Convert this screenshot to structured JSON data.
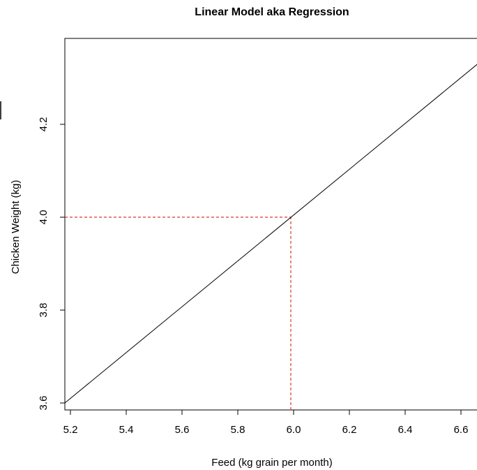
{
  "chart_data": {
    "type": "line",
    "title": "Linear Model aka Regression",
    "xlabel": "Feed (kg grain per month)",
    "ylabel": "Chicken  Weight (kg)",
    "xlim": [
      5.18,
      6.68
    ],
    "ylim": [
      3.585,
      4.385
    ],
    "x_ticks": [
      "5.2",
      "5.4",
      "5.6",
      "5.8",
      "6.0",
      "6.2",
      "6.4",
      "6.6"
    ],
    "y_ticks": [
      "3.6",
      "3.8",
      "4.0",
      "4.2"
    ],
    "grid": false,
    "series": [
      {
        "x": [
          5.18,
          6.68
        ],
        "y": [
          3.6,
          4.34
        ],
        "color": "#000000",
        "style": "solid"
      }
    ],
    "reference_lines": [
      {
        "orientation": "horizontal",
        "y": 4.0,
        "x_from": 5.18,
        "x_to": 5.99,
        "color": "#d9372b",
        "style": "dashed"
      },
      {
        "orientation": "vertical",
        "x": 5.99,
        "y_from": 3.585,
        "y_to": 4.0,
        "color": "#d9372b",
        "style": "dashed"
      }
    ]
  }
}
